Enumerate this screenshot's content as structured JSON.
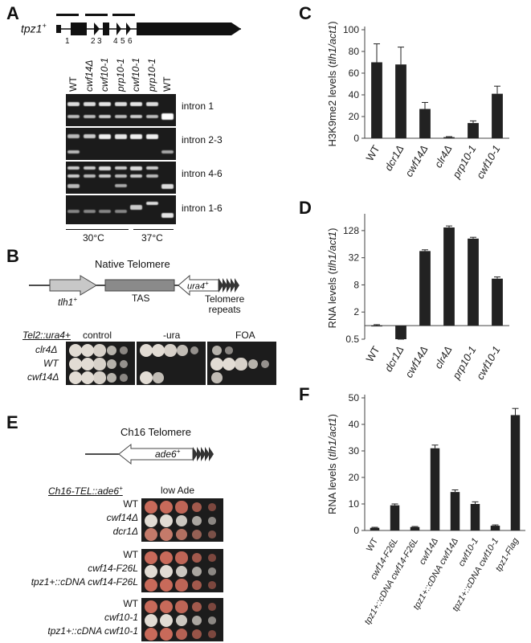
{
  "panels": {
    "A": {
      "label": "A",
      "gene": "tpz1",
      "gene_sup": "+",
      "exon_numbers": [
        "1",
        "2",
        "3",
        "4",
        "5",
        "6"
      ],
      "lanes": [
        "WT",
        "cwf14Δ",
        "cwf10-1",
        "prp10-1",
        "cwf10-1",
        "prp10-1",
        "WT"
      ],
      "rows": [
        "intron 1",
        "intron 2-3",
        "intron 4-6",
        "intron 1-6"
      ],
      "temps": [
        "30°C",
        "37°C"
      ]
    },
    "B": {
      "label": "B",
      "title": "Native Telomere",
      "tlh1": "tlh1",
      "tlh1_sup": "+",
      "tas": "TAS",
      "ura4": "ura4",
      "ura4_sup": "+",
      "repeats": "Telomere\nrepeats",
      "strain_header": "Tel2::ura4+",
      "conditions": [
        "control",
        "-ura",
        "FOA"
      ],
      "strains": [
        "clr4Δ",
        "WT",
        "cwf14Δ"
      ]
    },
    "C": {
      "label": "C"
    },
    "D": {
      "label": "D"
    },
    "E": {
      "label": "E",
      "title": "Ch16 Telomere",
      "ade6": "ade6",
      "ade6_sup": "+",
      "strain_header": "Ch16-TEL::ade6",
      "strain_header_sup": "+",
      "condition": "low Ade",
      "groups": [
        [
          "WT",
          "cwf14Δ",
          "dcr1Δ"
        ],
        [
          "WT",
          "cwf14-F26L",
          "tpz1+::cDNA cwf14-F26L"
        ],
        [
          "WT",
          "cwf10-1",
          "tpz1+::cDNA cwf10-1"
        ]
      ]
    },
    "F": {
      "label": "F"
    }
  },
  "chart_data": [
    {
      "panel": "C",
      "type": "bar",
      "ylabel": "H3K9me2 levels (tlh1/act1)",
      "categories": [
        "WT",
        "dcr1Δ",
        "cwf14Δ",
        "clr4Δ",
        "prp10-1",
        "cwf10-1"
      ],
      "values": [
        70,
        68,
        27,
        1,
        14,
        41
      ],
      "errors": [
        17,
        16,
        6,
        0.5,
        2,
        7
      ],
      "ylim": [
        0,
        100
      ],
      "yticks": [
        0,
        20,
        40,
        60,
        80,
        100
      ],
      "scale": "linear"
    },
    {
      "panel": "D",
      "type": "bar",
      "ylabel": "RNA levels (tlh1/act1)",
      "categories": [
        "WT",
        "dcr1Δ",
        "cwf14Δ",
        "clr4Δ",
        "prp10-1",
        "cwf10-1"
      ],
      "values": [
        1,
        0.5,
        45,
        150,
        85,
        11
      ],
      "errors": [
        0.05,
        0.03,
        3,
        12,
        6,
        1
      ],
      "ylim": [
        0.5,
        256
      ],
      "yticks": [
        0.5,
        2,
        8,
        32,
        128
      ],
      "scale": "log2",
      "baseline": 1
    },
    {
      "panel": "F",
      "type": "bar",
      "ylabel": "RNA levels (tlh1/act1)",
      "categories": [
        "WT",
        "cwf14-F26L",
        "tpz1+::cDNA cwf14-F26L",
        "cwf14Δ",
        "tpz1+::cDNA cwf14Δ",
        "cwf10-1",
        "tpz1+::cDNA cwf10-1",
        "tpz1-Flag"
      ],
      "values": [
        1,
        9.5,
        1.3,
        31,
        14.5,
        10,
        1.8,
        43.5
      ],
      "errors": [
        0.2,
        0.5,
        0.2,
        1.2,
        0.8,
        0.8,
        0.3,
        2.5
      ],
      "ylim": [
        0,
        50
      ],
      "yticks": [
        0,
        10,
        20,
        30,
        40,
        50
      ],
      "scale": "linear"
    }
  ],
  "colors": {
    "bar": "#222222",
    "arrow_light": "#c8c8c8",
    "arrow_mid": "#8a8a8a",
    "gel": "#1b1b1b",
    "colony_red": "#c86a5a",
    "colony_white": "#e2dcd4"
  }
}
